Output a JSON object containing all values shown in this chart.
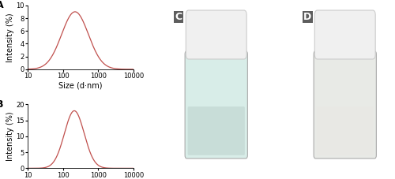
{
  "panel_A": {
    "label": "A",
    "peak_nm": 220,
    "peak_intensity": 9.0,
    "sigma_log": 0.38,
    "ylim": [
      0,
      10
    ],
    "yticks": [
      0,
      2,
      4,
      6,
      8,
      10
    ],
    "ylabel": "Intensity (%)",
    "xlabel": "Size (d·nm)",
    "xticks_vals": [
      10,
      100,
      1000,
      10000
    ],
    "xtick_labels": [
      "10",
      "100",
      "1000",
      "10000"
    ],
    "line_color": "#c0504d"
  },
  "panel_B": {
    "label": "B",
    "peak_nm": 210,
    "peak_intensity": 18.0,
    "sigma_log": 0.28,
    "ylim": [
      0,
      20
    ],
    "yticks": [
      0,
      5,
      10,
      15,
      20
    ],
    "ylabel": "Intensity (%)",
    "xlabel": "Size (d·nm)",
    "xticks_vals": [
      10,
      100,
      1000,
      10000
    ],
    "xtick_labels": [
      "10",
      "100",
      "1000",
      "10000"
    ],
    "line_color": "#c0504d"
  },
  "panel_C": {
    "label": "C",
    "bg_color": "#5aaa8a",
    "vial_color": "#d8ede8",
    "cap_color": "#f0f0f0",
    "liquid_color": "#c8ddd8"
  },
  "panel_D": {
    "label": "D",
    "bg_color": "#5aaa8a",
    "vial_color": "#e8eae6",
    "cap_color": "#f0f0f0",
    "liquid_color": "#e8e8e4"
  },
  "figure_bg": "#ffffff",
  "label_fontsize": 9,
  "axis_fontsize": 7,
  "tick_fontsize": 6
}
